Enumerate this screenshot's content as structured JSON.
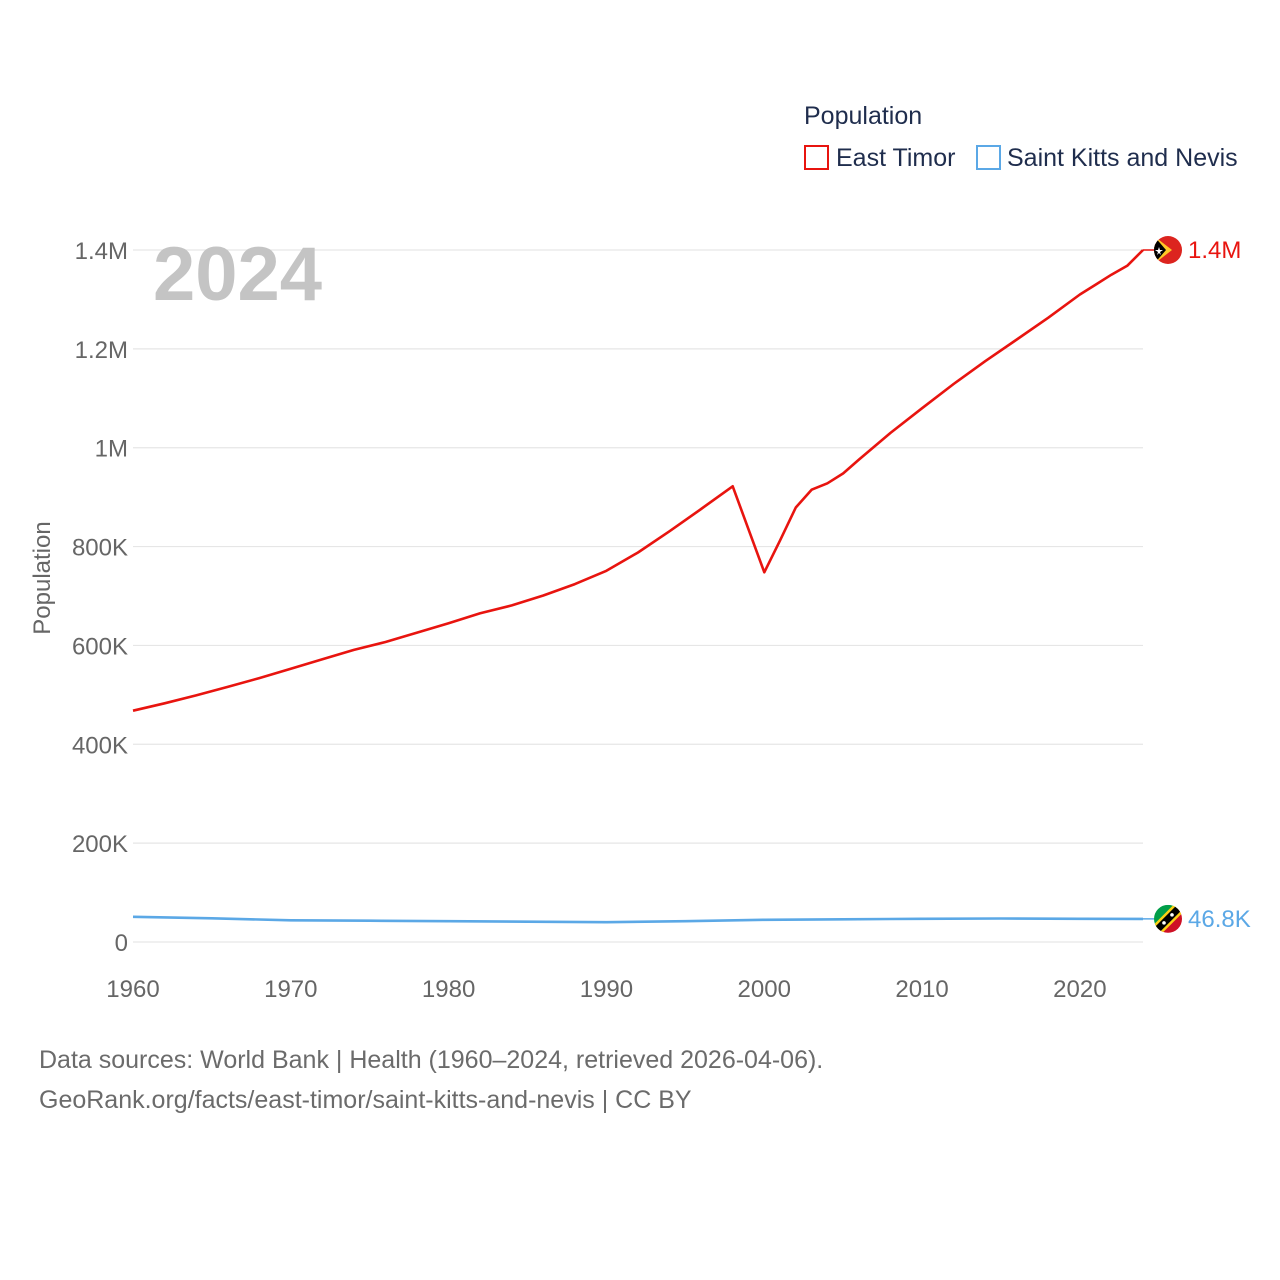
{
  "chart_data": {
    "type": "line",
    "ylabel": "Population",
    "xlabel": "",
    "year_stamp": "2024",
    "x_ticks": [
      1960,
      1970,
      1980,
      1990,
      2000,
      2010,
      2020
    ],
    "x_tick_labels": [
      "1960",
      "1970",
      "1980",
      "1990",
      "2000",
      "2010",
      "2020"
    ],
    "y_ticks": [
      0,
      200000,
      400000,
      600000,
      800000,
      1000000,
      1200000,
      1400000
    ],
    "y_tick_labels": [
      "0",
      "200K",
      "400K",
      "600K",
      "800K",
      "1M",
      "1.2M",
      "1.4M"
    ],
    "xlim": [
      1960,
      2024
    ],
    "ylim": [
      0,
      1400000
    ],
    "legend": {
      "title": "Population",
      "position": "top-right",
      "entries": [
        "East Timor",
        "Saint Kitts and Nevis"
      ]
    },
    "series": [
      {
        "name": "East Timor",
        "color": "#e8140f",
        "flag_icon": "east-timor-flag-icon",
        "end_label": "1.4M",
        "x": [
          1960,
          1962,
          1964,
          1966,
          1968,
          1970,
          1972,
          1974,
          1976,
          1978,
          1980,
          1982,
          1984,
          1986,
          1988,
          1990,
          1992,
          1994,
          1996,
          1998,
          1999,
          2000,
          2001,
          2002,
          2003,
          2004,
          2005,
          2006,
          2007,
          2008,
          2010,
          2012,
          2014,
          2016,
          2018,
          2020,
          2021,
          2022,
          2023,
          2024
        ],
        "values": [
          468000,
          483000,
          499000,
          516000,
          534000,
          553000,
          572000,
          591000,
          607000,
          626000,
          645000,
          665000,
          681000,
          701000,
          724000,
          751000,
          788000,
          831000,
          876000,
          922000,
          835000,
          748000,
          812000,
          879000,
          915000,
          928000,
          948000,
          976000,
          1003000,
          1030000,
          1080000,
          1129000,
          1175000,
          1219000,
          1263000,
          1310000,
          1330000,
          1350000,
          1368000,
          1400000
        ]
      },
      {
        "name": "Saint Kitts and Nevis",
        "color": "#5ba8e6",
        "flag_icon": "saint-kitts-and-nevis-flag-icon",
        "end_label": "46.8K",
        "x": [
          1960,
          1965,
          1970,
          1975,
          1980,
          1985,
          1990,
          1995,
          2000,
          2005,
          2010,
          2015,
          2020,
          2024
        ],
        "values": [
          51000,
          48000,
          44000,
          43000,
          42000,
          41000,
          40000,
          42000,
          45000,
          46000,
          47000,
          47500,
          47000,
          46800
        ]
      }
    ]
  },
  "source": {
    "line1": "Data sources: World Bank | Health (1960–2024, retrieved 2026-04-06).",
    "line2": "GeoRank.org/facts/east-timor/saint-kitts-and-nevis | CC BY"
  }
}
